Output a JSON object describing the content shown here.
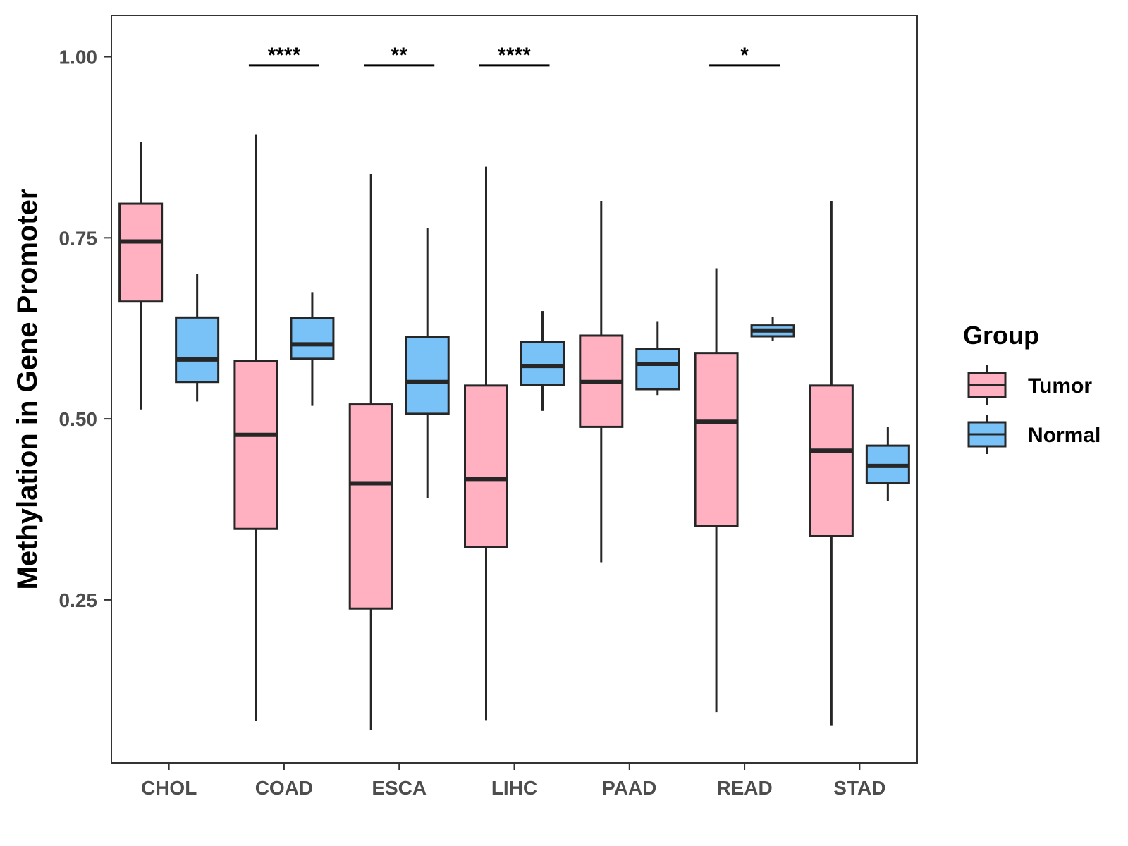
{
  "chart_data": {
    "type": "boxplot",
    "title": "",
    "xlabel": "",
    "ylabel": "Methylation in Gene Promoter",
    "ylim": [
      0.025,
      1.057
    ],
    "yticks": [
      0.25,
      0.5,
      0.75,
      1.0
    ],
    "ytick_labels": [
      "0.25",
      "0.50",
      "0.75",
      "1.00"
    ],
    "categories": [
      "CHOL",
      "COAD",
      "ESCA",
      "LIHC",
      "PAAD",
      "READ",
      "STAD"
    ],
    "legend": {
      "title": "Group",
      "position": "right",
      "entries": [
        {
          "name": "Tumor",
          "color": "#FFB0C1"
        },
        {
          "name": "Normal",
          "color": "#79C2F8"
        }
      ]
    },
    "series": [
      {
        "name": "Tumor",
        "color": "#FFB0C1",
        "boxes": [
          {
            "category": "CHOL",
            "min": 0.513,
            "q1": 0.662,
            "median": 0.745,
            "q3": 0.797,
            "max": 0.882
          },
          {
            "category": "COAD",
            "min": 0.083,
            "q1": 0.348,
            "median": 0.478,
            "q3": 0.58,
            "max": 0.893
          },
          {
            "category": "ESCA",
            "min": 0.07,
            "q1": 0.238,
            "median": 0.411,
            "q3": 0.52,
            "max": 0.838
          },
          {
            "category": "LIHC",
            "min": 0.084,
            "q1": 0.323,
            "median": 0.417,
            "q3": 0.546,
            "max": 0.848
          },
          {
            "category": "PAAD",
            "min": 0.302,
            "q1": 0.489,
            "median": 0.551,
            "q3": 0.615,
            "max": 0.801
          },
          {
            "category": "READ",
            "min": 0.095,
            "q1": 0.352,
            "median": 0.496,
            "q3": 0.591,
            "max": 0.708
          },
          {
            "category": "STAD",
            "min": 0.076,
            "q1": 0.338,
            "median": 0.456,
            "q3": 0.546,
            "max": 0.801
          }
        ]
      },
      {
        "name": "Normal",
        "color": "#79C2F8",
        "boxes": [
          {
            "category": "CHOL",
            "min": 0.524,
            "q1": 0.551,
            "median": 0.582,
            "q3": 0.64,
            "max": 0.7
          },
          {
            "category": "COAD",
            "min": 0.518,
            "q1": 0.583,
            "median": 0.603,
            "q3": 0.639,
            "max": 0.675
          },
          {
            "category": "ESCA",
            "min": 0.391,
            "q1": 0.507,
            "median": 0.551,
            "q3": 0.613,
            "max": 0.764
          },
          {
            "category": "LIHC",
            "min": 0.511,
            "q1": 0.547,
            "median": 0.573,
            "q3": 0.606,
            "max": 0.649
          },
          {
            "category": "PAAD",
            "min": 0.533,
            "q1": 0.541,
            "median": 0.576,
            "q3": 0.596,
            "max": 0.634
          },
          {
            "category": "READ",
            "min": 0.608,
            "q1": 0.614,
            "median": 0.622,
            "q3": 0.629,
            "max": 0.641
          },
          {
            "category": "STAD",
            "min": 0.387,
            "q1": 0.411,
            "median": 0.435,
            "q3": 0.463,
            "max": 0.489
          }
        ]
      }
    ],
    "annotations": [
      {
        "category": "COAD",
        "label": "****",
        "y": 0.988
      },
      {
        "category": "ESCA",
        "label": "**",
        "y": 0.988
      },
      {
        "category": "LIHC",
        "label": "****",
        "y": 0.988
      },
      {
        "category": "READ",
        "label": "*",
        "y": 0.988
      }
    ]
  }
}
